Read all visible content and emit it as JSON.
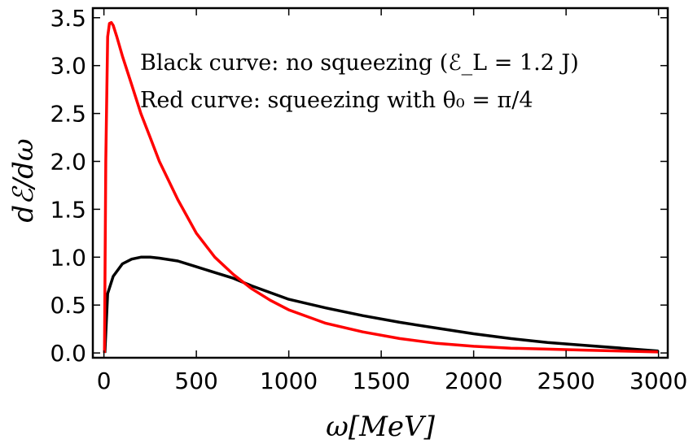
{
  "chart_data": {
    "type": "line",
    "title": "",
    "xlabel": "ω[MeV]",
    "ylabel": "dℰ/dω",
    "xlim": [
      -60,
      3050
    ],
    "ylim": [
      -0.05,
      3.6
    ],
    "xticks": [
      0,
      500,
      1000,
      1500,
      2000,
      2500,
      3000
    ],
    "yticks": [
      0.0,
      0.5,
      1.0,
      1.5,
      2.0,
      2.5,
      3.0,
      3.5
    ],
    "xtick_labels": [
      "0",
      "500",
      "1000",
      "1500",
      "2000",
      "2500",
      "3000"
    ],
    "ytick_labels": [
      "0.0",
      "0.5",
      "1.0",
      "1.5",
      "2.0",
      "2.5",
      "3.0",
      "3.5"
    ],
    "grid": false,
    "annotations": [
      "Black curve: no squeezing (ℰ_L = 1.2 J)",
      "Red curve: squeezing with θ₀ = π/4"
    ],
    "series": [
      {
        "color": "#000000",
        "x": [
          5,
          20,
          50,
          100,
          150,
          200,
          250,
          300,
          400,
          500,
          600,
          700,
          800,
          900,
          1000,
          1200,
          1400,
          1600,
          1800,
          2000,
          2200,
          2400,
          2600,
          2800,
          3000
        ],
        "y": [
          0.0,
          0.62,
          0.8,
          0.93,
          0.98,
          1.0,
          1.0,
          0.99,
          0.96,
          0.9,
          0.84,
          0.78,
          0.7,
          0.63,
          0.56,
          0.47,
          0.39,
          0.32,
          0.26,
          0.2,
          0.15,
          0.11,
          0.08,
          0.05,
          0.02
        ]
      },
      {
        "color": "#ff0000",
        "x": [
          3,
          10,
          20,
          30,
          40,
          50,
          70,
          100,
          150,
          200,
          250,
          300,
          350,
          400,
          500,
          600,
          700,
          800,
          900,
          1000,
          1200,
          1400,
          1600,
          1800,
          2000,
          2200,
          2400,
          2600,
          2800,
          3000
        ],
        "y": [
          0.0,
          2.0,
          3.3,
          3.44,
          3.45,
          3.42,
          3.3,
          3.1,
          2.8,
          2.5,
          2.25,
          2.0,
          1.8,
          1.6,
          1.25,
          1.0,
          0.82,
          0.67,
          0.55,
          0.45,
          0.31,
          0.22,
          0.15,
          0.1,
          0.07,
          0.05,
          0.04,
          0.03,
          0.02,
          0.01
        ]
      }
    ]
  }
}
